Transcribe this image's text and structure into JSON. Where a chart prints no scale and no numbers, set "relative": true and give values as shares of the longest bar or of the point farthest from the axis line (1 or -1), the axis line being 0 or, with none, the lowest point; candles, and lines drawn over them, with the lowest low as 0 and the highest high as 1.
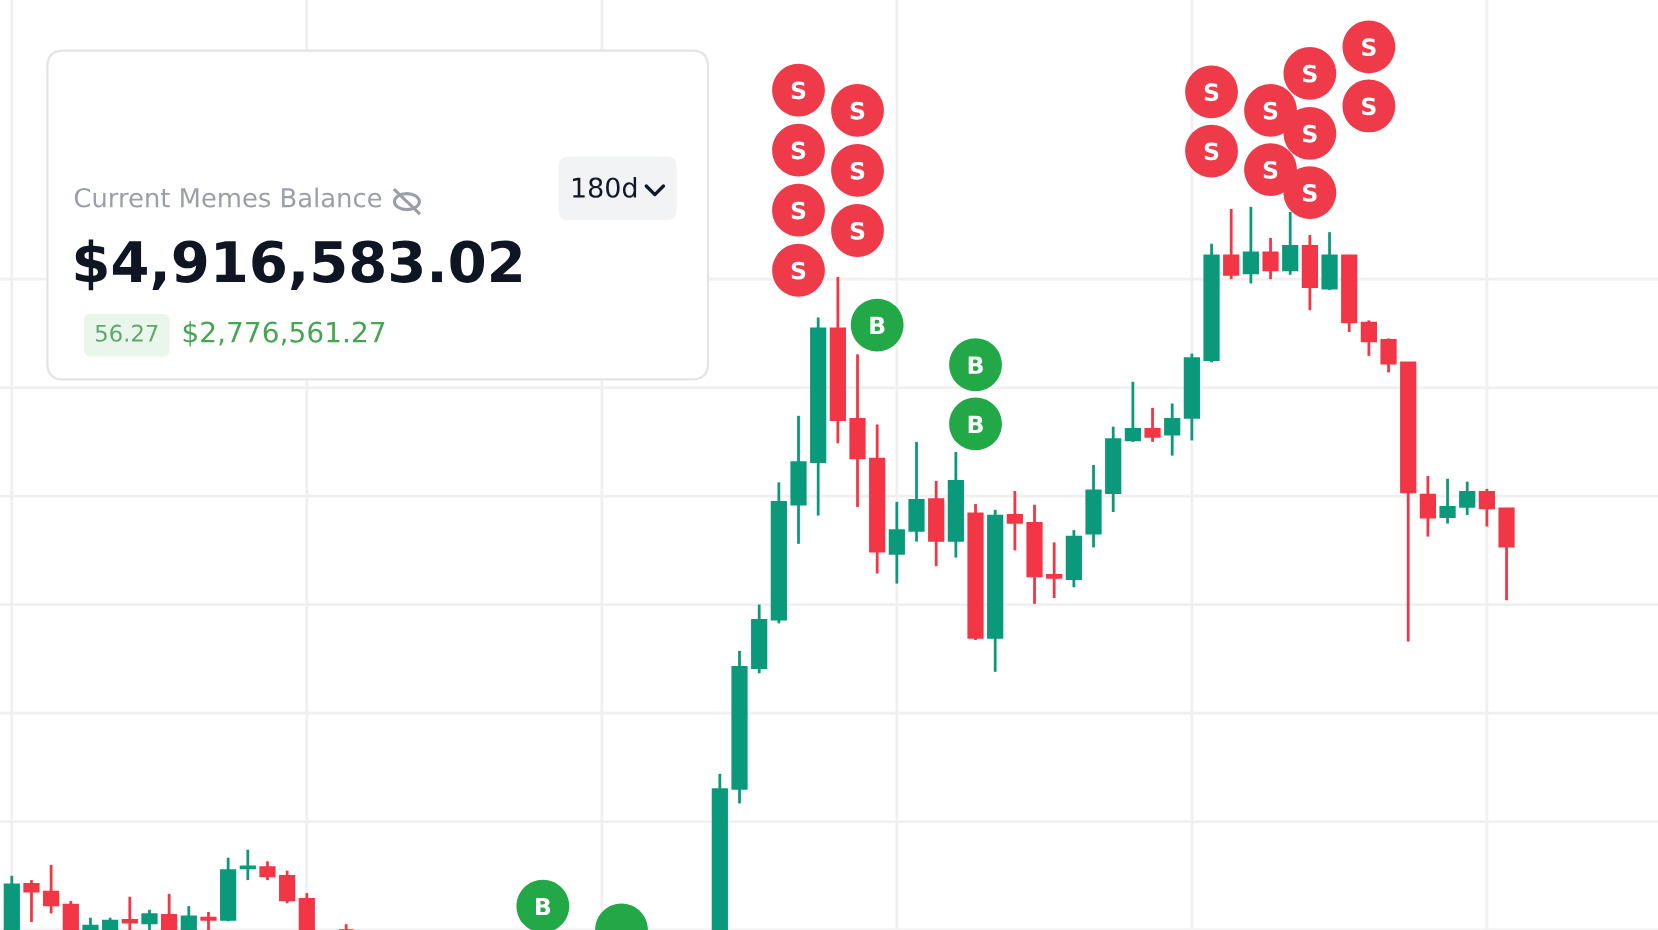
{
  "chart_data": [
    {
      "type": "candlestick",
      "relative": true,
      "grid": true,
      "categories": [
        null,
        null,
        null,
        null,
        null,
        null,
        null,
        null,
        null,
        null,
        null,
        null,
        null,
        null,
        null,
        null,
        null,
        null,
        null,
        null,
        null,
        null,
        null,
        null,
        null,
        null,
        null,
        null,
        null,
        null,
        null,
        null,
        null,
        null,
        null,
        null,
        null,
        null,
        null,
        null,
        null,
        null,
        null,
        null,
        null,
        null,
        null,
        null,
        null,
        null,
        null,
        null,
        null,
        null,
        null,
        null,
        null,
        null,
        null,
        null,
        null,
        null,
        null,
        null,
        null,
        null,
        null,
        null,
        null,
        null,
        null,
        null,
        null,
        null,
        null,
        null,
        null
      ],
      "ohlc": [
        [
          0,
          0.075,
          0,
          0.063
        ],
        [
          0.064,
          0.069,
          0.011,
          0.053
        ],
        [
          0.053,
          0.09,
          0.023,
          0.034
        ],
        [
          0.035,
          0.04,
          0,
          0
        ],
        [
          0,
          0.017,
          0,
          0.006
        ],
        [
          0,
          0.017,
          0,
          0.013
        ],
        [
          0.014,
          0.046,
          0,
          0.01
        ],
        [
          0.009,
          0.028,
          0,
          0.022
        ],
        [
          0.021,
          0.05,
          0,
          0
        ],
        [
          0,
          0.033,
          0,
          0.019
        ],
        [
          0.017,
          0.025,
          0,
          0.014
        ],
        [
          0.014,
          0.1,
          0.012,
          0.083
        ],
        [
          0.085,
          0.111,
          0.069,
          0.088
        ],
        [
          0.087,
          0.095,
          0.069,
          0.074
        ],
        [
          0.075,
          0.082,
          0.037,
          0.041
        ],
        [
          0.043,
          0.051,
          0,
          0
        ],
        null,
        [
          0,
          0.008,
          0,
          0
        ],
        null,
        null,
        null,
        null,
        null,
        null,
        null,
        null,
        null,
        null,
        null,
        null,
        null,
        null,
        null,
        null,
        null,
        null,
        [
          0,
          0.216,
          0,
          0.195
        ],
        [
          0.195,
          0.386,
          0.175,
          0.364
        ],
        [
          0.362,
          0.45,
          0.355,
          0.429
        ],
        [
          0.429,
          0.619,
          0.424,
          0.592
        ],
        [
          0.588,
          0.711,
          0.534,
          0.647
        ],
        [
          0.647,
          0.847,
          0.573,
          0.832
        ],
        [
          0.832,
          0.903,
          0.673,
          0.705
        ],
        [
          0.707,
          0.796,
          0.585,
          0.652
        ],
        [
          0.652,
          0.699,
          0.493,
          0.523
        ],
        [
          0.52,
          0.592,
          0.479,
          0.553
        ],
        [
          0.552,
          0.675,
          0.537,
          0.595
        ],
        [
          0.596,
          0.621,
          0.503,
          0.538
        ],
        [
          0.538,
          0.661,
          0.515,
          0.621
        ],
        [
          0.576,
          0.589,
          0.401,
          0.404
        ],
        [
          0.404,
          0.581,
          0.357,
          0.573
        ],
        [
          0.574,
          0.607,
          0.525,
          0.563
        ],
        [
          0.563,
          0.588,
          0.451,
          0.489
        ],
        [
          0.491,
          0.536,
          0.459,
          0.487
        ],
        [
          0.485,
          0.553,
          0.474,
          0.544
        ],
        [
          0.548,
          0.643,
          0.529,
          0.608
        ],
        [
          0.604,
          0.696,
          0.578,
          0.679
        ],
        [
          0.677,
          0.758,
          0.675,
          0.693
        ],
        [
          0.693,
          0.722,
          0.675,
          0.682
        ],
        [
          0.685,
          0.728,
          0.656,
          0.707
        ],
        [
          0.708,
          0.797,
          0.677,
          0.791
        ],
        [
          0.788,
          0.949,
          0.785,
          0.933
        ],
        [
          0.933,
          0.997,
          0.9,
          0.906
        ],
        [
          0.908,
          1.0,
          0.894,
          0.937
        ],
        [
          0.937,
          0.957,
          0.9,
          0.912
        ],
        [
          0.912,
          0.993,
          0.906,
          0.946
        ],
        [
          0.946,
          0.961,
          0.857,
          0.889
        ],
        [
          0.887,
          0.965,
          0.885,
          0.933
        ],
        [
          0.933,
          0.933,
          0.827,
          0.84
        ],
        [
          0.84,
          0.843,
          0.794,
          0.814
        ],
        [
          0.816,
          0.818,
          0.771,
          0.783
        ],
        [
          0.785,
          0.785,
          0.399,
          0.605
        ],
        [
          0.602,
          0.628,
          0.544,
          0.57
        ],
        [
          0.571,
          0.624,
          0.562,
          0.585
        ],
        [
          0.585,
          0.62,
          0.574,
          0.606
        ],
        [
          0.606,
          0.61,
          0.558,
          0.583
        ],
        [
          0.583,
          0.583,
          0.456,
          0.53
        ]
      ],
      "colors": [
        "#0a9a7b",
        "#f23645",
        "#f23645",
        "#f23645",
        "#0a9a7b",
        "#0a9a7b",
        "#f23645",
        "#0a9a7b",
        "#f23645",
        "#0a9a7b",
        "#f23645",
        "#0a9a7b",
        "#0a9a7b",
        "#f23645",
        "#f23645",
        "#f23645",
        null,
        "#f23645",
        null,
        null,
        null,
        null,
        null,
        null,
        null,
        null,
        null,
        null,
        null,
        null,
        null,
        null,
        null,
        null,
        null,
        null,
        "#0a9a7b",
        "#0a9a7b",
        "#0a9a7b",
        "#0a9a7b",
        "#0a9a7b",
        "#0a9a7b",
        "#f23645",
        "#f23645",
        "#f23645",
        "#0a9a7b",
        "#0a9a7b",
        "#f23645",
        "#0a9a7b",
        "#f23645",
        "#0a9a7b",
        "#f23645",
        "#f23645",
        "#f23645",
        "#0a9a7b",
        "#0a9a7b",
        "#0a9a7b",
        "#0a9a7b",
        "#f23645",
        "#0a9a7b",
        "#0a9a7b",
        "#0a9a7b",
        "#f23645",
        "#0a9a7b",
        "#f23645",
        "#0a9a7b",
        "#f23645",
        "#0a9a7b",
        "#f23645",
        "#f23645",
        "#f23645",
        "#f23645",
        "#f23645",
        "#0a9a7b",
        "#0a9a7b",
        "#f23645",
        "#f23645"
      ]
    },
    {
      "type": "scatter",
      "relative": true,
      "categories": [
        null,
        null,
        null,
        null,
        null,
        null,
        null,
        null,
        null,
        null,
        null,
        null,
        null,
        null,
        null,
        null,
        null,
        null,
        null,
        null,
        null,
        null,
        null,
        null,
        null,
        null,
        null,
        null,
        null,
        null,
        null,
        null,
        null,
        null,
        null,
        null,
        null,
        null,
        null,
        null,
        null,
        null,
        null,
        null,
        null,
        null,
        null,
        null,
        null,
        null,
        null,
        null,
        null,
        null,
        null,
        null,
        null,
        null,
        null,
        null,
        null,
        null,
        null,
        null,
        null,
        null,
        null,
        null,
        null,
        null,
        null,
        null,
        null,
        null,
        null,
        null,
        null
      ],
      "series": [
        {
          "name": "S",
          "color": "#ef3a4a",
          "marker": "circle",
          "values": [
            null,
            null,
            null,
            null,
            null,
            null,
            null,
            null,
            null,
            null,
            null,
            null,
            null,
            null,
            null,
            null,
            null,
            null,
            null,
            null,
            null,
            null,
            null,
            null,
            null,
            null,
            null,
            null,
            null,
            null,
            null,
            null,
            null,
            null,
            null,
            null,
            null,
            null,
            null,
            null,
            0.951,
            null,
            null,
            0.928,
            null,
            null,
            null,
            null,
            null,
            null,
            null,
            null,
            null,
            null,
            null,
            null,
            null,
            null,
            null,
            null,
            null,
            0.949,
            null,
            null,
            0.928,
            null,
            0.97,
            null,
            null,
            1.0,
            null,
            null,
            null,
            null,
            null,
            null,
            null
          ]
        },
        {
          "name": "S",
          "color": "#ef3a4a",
          "marker": "circle",
          "values": [
            null,
            null,
            null,
            null,
            null,
            null,
            null,
            null,
            null,
            null,
            null,
            null,
            null,
            null,
            null,
            null,
            null,
            null,
            null,
            null,
            null,
            null,
            null,
            null,
            null,
            null,
            null,
            null,
            null,
            null,
            null,
            null,
            null,
            null,
            null,
            null,
            null,
            null,
            null,
            null,
            0.883,
            null,
            null,
            0.86,
            null,
            null,
            null,
            null,
            null,
            null,
            null,
            null,
            null,
            null,
            null,
            null,
            null,
            null,
            null,
            null,
            null,
            0.882,
            null,
            null,
            0.861,
            null,
            0.902,
            null,
            null,
            0.933,
            null,
            null,
            null,
            null,
            null,
            null,
            null
          ]
        },
        {
          "name": "S",
          "color": "#ef3a4a",
          "marker": "circle",
          "values": [
            null,
            null,
            null,
            null,
            null,
            null,
            null,
            null,
            null,
            null,
            null,
            null,
            null,
            null,
            null,
            null,
            null,
            null,
            null,
            null,
            null,
            null,
            null,
            null,
            null,
            null,
            null,
            null,
            null,
            null,
            null,
            null,
            null,
            null,
            null,
            null,
            null,
            null,
            null,
            null,
            0.815,
            null,
            null,
            0.792,
            null,
            null,
            null,
            null,
            null,
            null,
            null,
            null,
            null,
            null,
            null,
            null,
            null,
            null,
            null,
            null,
            null,
            null,
            null,
            null,
            null,
            null,
            0.835,
            null,
            null,
            null,
            null,
            null,
            null,
            null,
            null,
            null,
            null
          ]
        },
        {
          "name": "S",
          "color": "#ef3a4a",
          "marker": "circle",
          "values": [
            null,
            null,
            null,
            null,
            null,
            null,
            null,
            null,
            null,
            null,
            null,
            null,
            null,
            null,
            null,
            null,
            null,
            null,
            null,
            null,
            null,
            null,
            null,
            null,
            null,
            null,
            null,
            null,
            null,
            null,
            null,
            null,
            null,
            null,
            null,
            null,
            null,
            null,
            null,
            null,
            0.747,
            null,
            null,
            null,
            null,
            null,
            null,
            null,
            null,
            null,
            null,
            null,
            null,
            null,
            null,
            null,
            null,
            null,
            null,
            null,
            null,
            null,
            null,
            null,
            null,
            null,
            null,
            null,
            null,
            null,
            null,
            null,
            null,
            null,
            null,
            null,
            null
          ]
        },
        {
          "name": "B",
          "color": "#22a846",
          "marker": "circle",
          "values": [
            null,
            null,
            null,
            null,
            null,
            null,
            null,
            null,
            null,
            null,
            null,
            null,
            null,
            null,
            null,
            null,
            null,
            null,
            null,
            null,
            null,
            null,
            null,
            null,
            null,
            null,
            null,
            0.027,
            null,
            null,
            null,
            null,
            null,
            null,
            null,
            null,
            null,
            null,
            null,
            null,
            null,
            null,
            null,
            null,
            0.685,
            null,
            null,
            null,
            null,
            0.64,
            null,
            null,
            null,
            null,
            null,
            null,
            null,
            null,
            null,
            null,
            null,
            null,
            null,
            null,
            null,
            null,
            null,
            null,
            null,
            null,
            null,
            null,
            null,
            null,
            null,
            null,
            null
          ]
        },
        {
          "name": "B",
          "color": "#22a846",
          "marker": "circle",
          "values": [
            null,
            null,
            null,
            null,
            null,
            null,
            null,
            null,
            null,
            null,
            null,
            null,
            null,
            null,
            null,
            null,
            null,
            null,
            null,
            null,
            null,
            null,
            null,
            null,
            null,
            null,
            null,
            null,
            null,
            null,
            null,
            null,
            null,
            null,
            null,
            null,
            null,
            null,
            null,
            null,
            null,
            null,
            null,
            null,
            null,
            null,
            null,
            null,
            null,
            0.573,
            null,
            null,
            null,
            null,
            null,
            null,
            null,
            null,
            null,
            null,
            null,
            null,
            null,
            null,
            null,
            null,
            null,
            null,
            null,
            null,
            null,
            null,
            null,
            null,
            null,
            null,
            null
          ]
        },
        {
          "color": "#22a846",
          "marker": "circle",
          "values": [
            null,
            null,
            null,
            null,
            null,
            null,
            null,
            null,
            null,
            null,
            null,
            null,
            null,
            null,
            null,
            null,
            null,
            null,
            null,
            null,
            null,
            null,
            null,
            null,
            null,
            null,
            null,
            null,
            null,
            null,
            null,
            0,
            null,
            null,
            null,
            null,
            null,
            null,
            null,
            null,
            null,
            null,
            null,
            null,
            null,
            null,
            null,
            null,
            null,
            null,
            null,
            null,
            null,
            null,
            null,
            null,
            null,
            null,
            null,
            null,
            null,
            null,
            null,
            null,
            null,
            null,
            null,
            null,
            null,
            null,
            null,
            null,
            null,
            null,
            null,
            null,
            null
          ]
        }
      ]
    },
    {
      "type": "other",
      "annotations": [
        "Current Memes Balance",
        "$4,916,583.02",
        "56.27",
        "$2,776,561.27",
        "180d"
      ]
    }
  ]
}
